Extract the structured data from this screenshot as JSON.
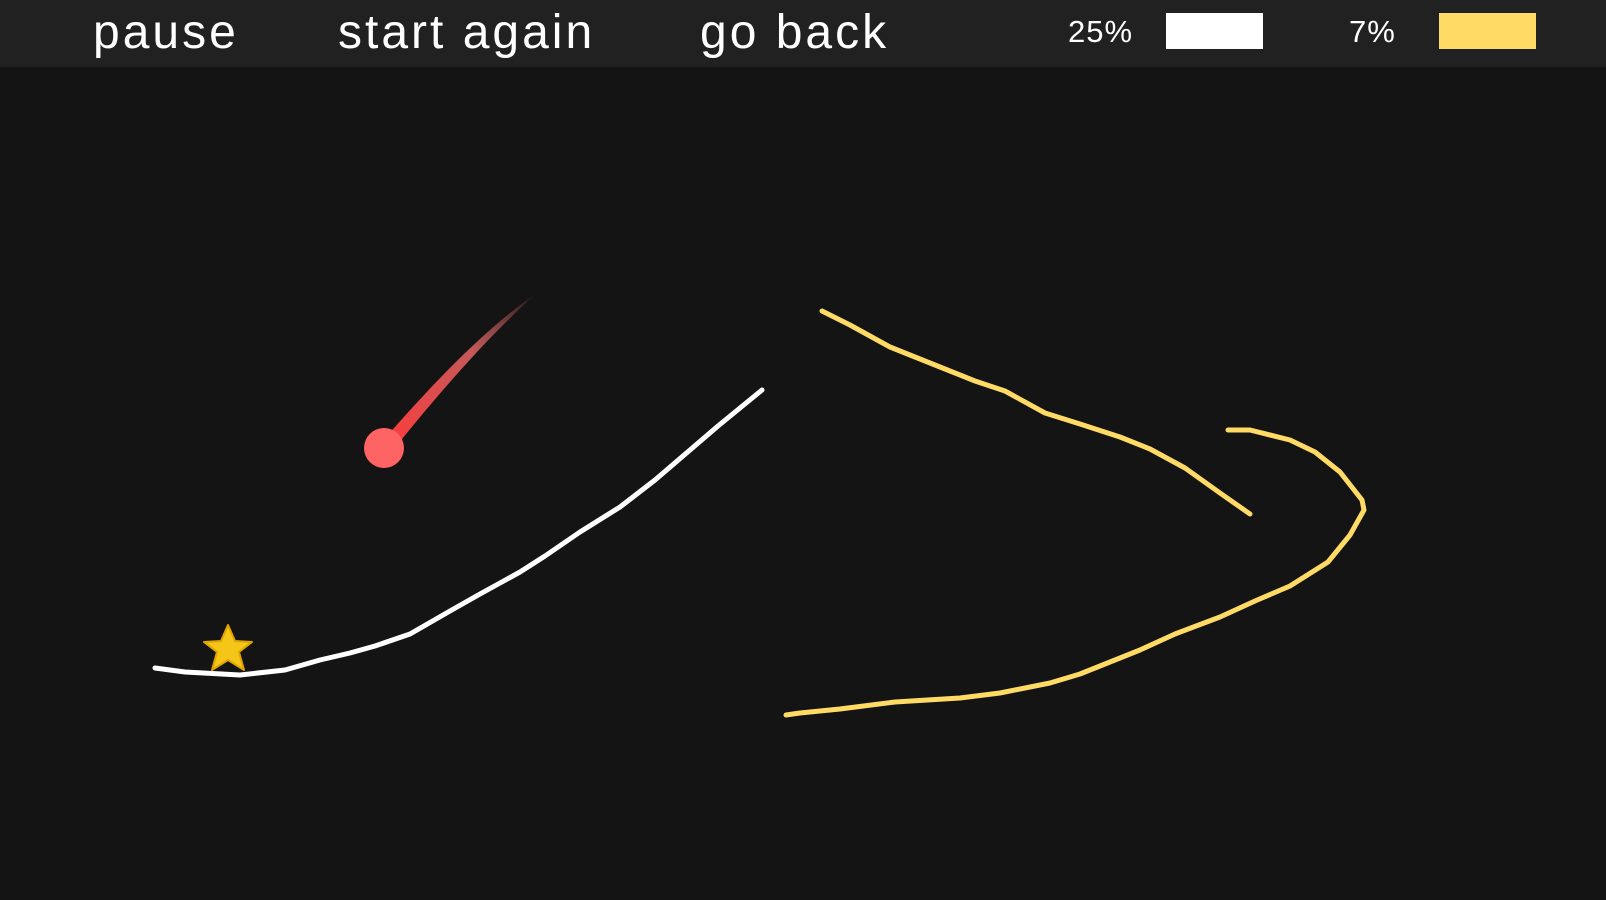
{
  "toolbar": {
    "pause_label": "pause",
    "restart_label": "start again",
    "back_label": "go back"
  },
  "inks": [
    {
      "name": "white",
      "percent_label": "25%",
      "color": "#ffffff"
    },
    {
      "name": "yellow",
      "percent_label": "7%",
      "color": "#ffdb66"
    }
  ],
  "scene": {
    "background": "#141414",
    "ball_color": "#ff6464",
    "star_color": "#f5c518",
    "icons": [
      "ball-icon",
      "star-icon"
    ]
  }
}
